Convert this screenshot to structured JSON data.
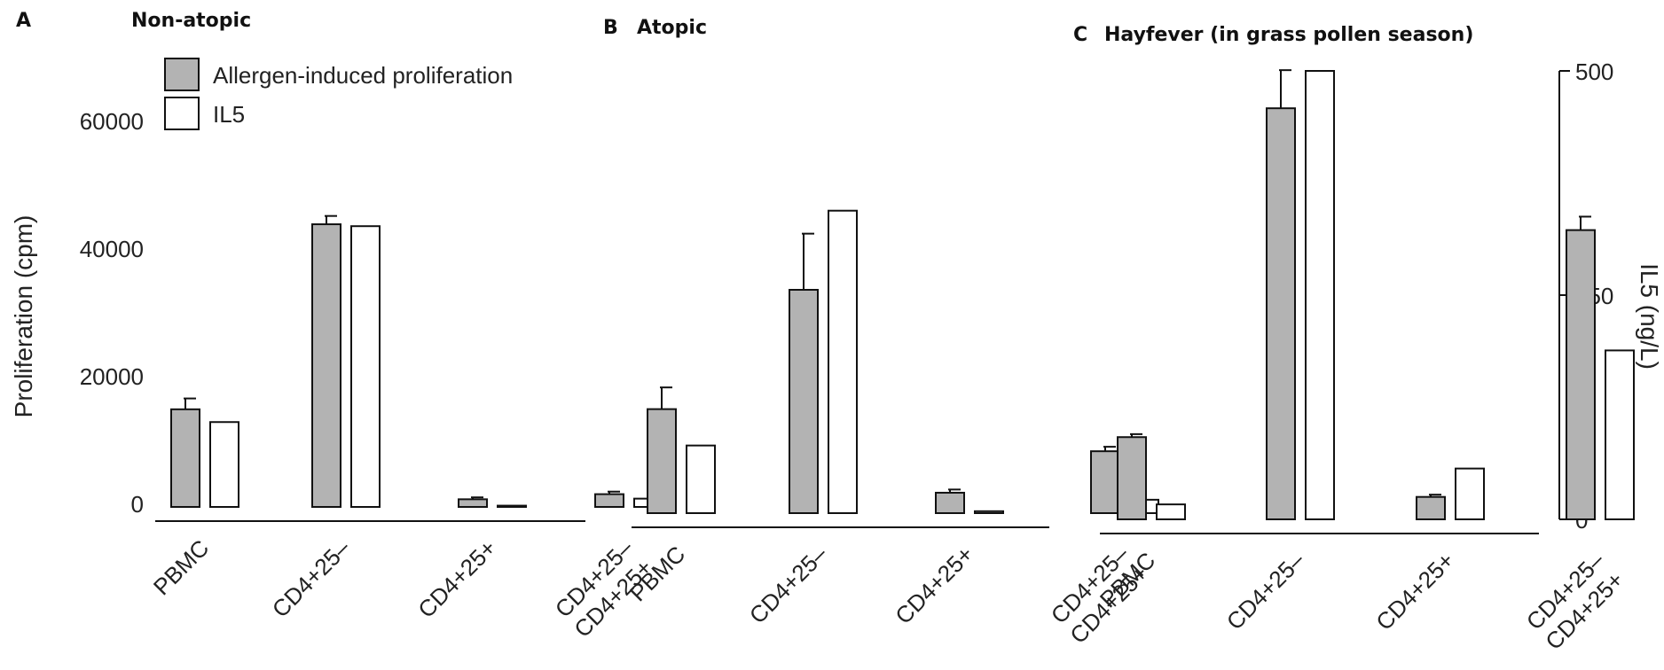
{
  "chart_data": [
    {
      "type": "bar",
      "panel": "A",
      "title": "Non-atopic",
      "categories": [
        "PBMC",
        "CD4+25–",
        "CD4+25+",
        "CD4+25–\nCD4+25+"
      ],
      "ylabel": "Proliferation (cpm)",
      "ylim": [
        0,
        60000
      ],
      "yticks": [
        "0",
        "20000",
        "40000",
        "60000"
      ],
      "series": [
        {
          "name": "Allergen-induced proliferation",
          "values": [
            15300,
            44300,
            1200,
            2000
          ],
          "errors": [
            1700,
            1300,
            300,
            400
          ]
        },
        {
          "name": "IL5",
          "values": [
            13300,
            44000,
            200,
            1300
          ]
        }
      ]
    },
    {
      "type": "bar",
      "panel": "B",
      "title": "Atopic",
      "categories": [
        "PBMC",
        "CD4+25–",
        "CD4+25+",
        "CD4+25–\nCD4+25+"
      ],
      "ylim": [
        0,
        60000
      ],
      "series": [
        {
          "name": "Allergen-induced proliferation",
          "values": [
            16300,
            35000,
            3200,
            9700
          ],
          "errors": [
            3400,
            8800,
            500,
            700
          ]
        },
        {
          "name": "IL5",
          "values": [
            10600,
            47400,
            300,
            2100
          ]
        }
      ]
    },
    {
      "type": "bar",
      "panel": "C",
      "title": "Hayfever (in grass pollen season)",
      "categories": [
        "PBMC",
        "CD4+25–",
        "CD4+25+",
        "CD4+25–\nCD4+25+"
      ],
      "ylim": [
        0,
        60000
      ],
      "y2label": "IL5 (ng/L)",
      "y2lim": [
        0,
        500
      ],
      "y2ticks": [
        "0",
        "250",
        "500"
      ],
      "series": [
        {
          "name": "Allergen-induced proliferation",
          "values": [
            11000,
            55000,
            3000,
            38700
          ],
          "errors": [
            400,
            5100,
            300,
            1800
          ]
        },
        {
          "name": "IL5",
          "values": [
            2000,
            60000,
            6800,
            22600
          ]
        }
      ]
    }
  ],
  "legend": {
    "items": [
      {
        "label": "Allergen-induced proliferation",
        "fill": "#b3b3b3"
      },
      {
        "label": "IL5",
        "fill": "#ffffff"
      }
    ]
  },
  "colors": {
    "bar_gray": "#b3b3b3",
    "bar_white": "#ffffff",
    "stroke": "#111111"
  }
}
